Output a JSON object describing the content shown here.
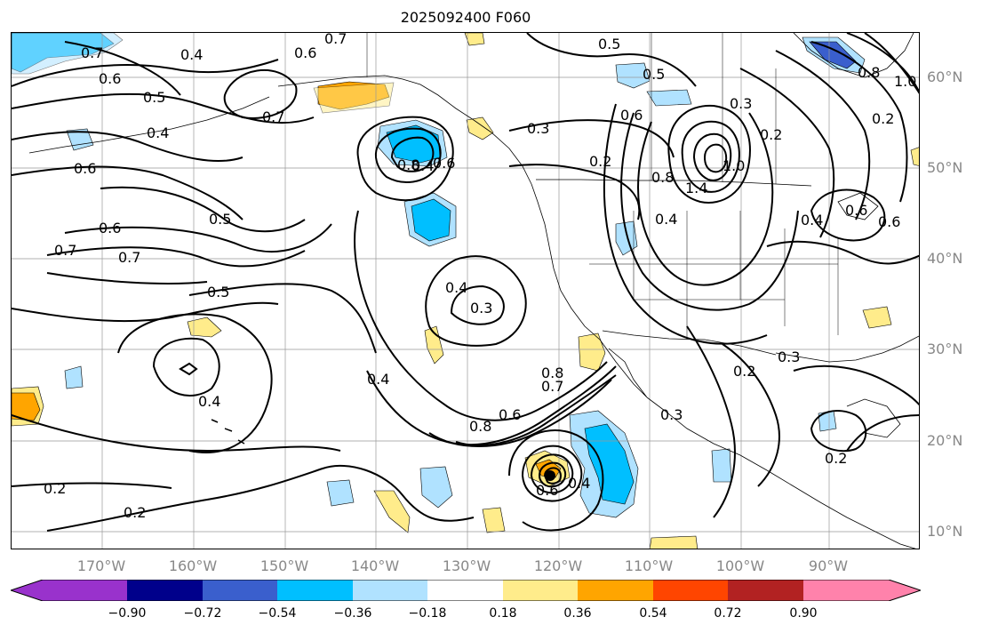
{
  "title": "2025092400 F060",
  "lat_labels": [
    "60°N",
    "50°N",
    "40°N",
    "30°N",
    "20°N",
    "10°N"
  ],
  "lon_labels": [
    "170°W",
    "160°W",
    "150°W",
    "140°W",
    "130°W",
    "120°W",
    "110°W",
    "100°W",
    "90°W"
  ],
  "colorbar": {
    "ticks": [
      "−0.90",
      "−0.72",
      "−0.54",
      "−0.36",
      "−0.18",
      "0.18",
      "0.36",
      "0.54",
      "0.72",
      "0.90"
    ],
    "colors": [
      "#9932cc",
      "#00008b",
      "#3a5fcd",
      "#00bfff",
      "#b0e2ff",
      "#ffffff",
      "#ffec8b",
      "#ffa500",
      "#ff4500",
      "#b22222",
      "#ff82ab"
    ]
  },
  "contour_labels": [
    "0.7",
    "0.4",
    "0.6",
    "0.5",
    "0.7",
    "0.7",
    "0.6",
    "0.4",
    "0.6",
    "0.5",
    "0.7",
    "0.4",
    "0.8",
    "0.6",
    "0.3",
    "0.5",
    "0.6",
    "0.2",
    "0.3",
    "0.2",
    "0.6",
    "0.5",
    "0.8",
    "0.2",
    "0.6",
    "1.0",
    "1.4",
    "0.8",
    "1.0",
    "0.4",
    "0.4",
    "0.6",
    "0.4",
    "0.3",
    "0.7",
    "0.5",
    "0.4",
    "0.4",
    "0.8",
    "0.7",
    "0.8",
    "0.6",
    "0.3",
    "0.2",
    "0.3",
    "0.2",
    "0.2",
    "0.2",
    "0.6",
    "0.4"
  ],
  "colors": {
    "ink": "#000000",
    "grid": "#999999",
    "axis_label": "#888888"
  }
}
